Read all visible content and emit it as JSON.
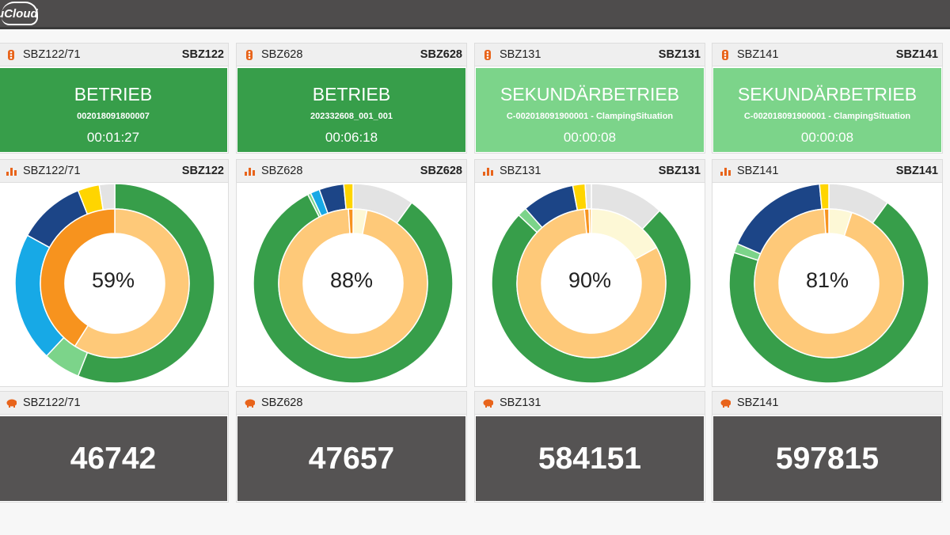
{
  "app": {
    "logo_text": "uCloud"
  },
  "colors": {
    "betrieb": "#379e4a",
    "sekundaer": "#7cd48a",
    "counter_bg": "#555353",
    "accent": "#e8641b"
  },
  "machines": [
    {
      "name": "SBZ122/71",
      "code": "SBZ122",
      "status": "BETRIEB",
      "job": "002018091800007",
      "time": "00:01:27",
      "status_color": "#379e4a",
      "percent": "59%",
      "counter": "46742"
    },
    {
      "name": "SBZ628",
      "code": "SBZ628",
      "status": "BETRIEB",
      "job": "202332608_001_001",
      "time": "00:06:18",
      "status_color": "#379e4a",
      "percent": "88%",
      "counter": "47657"
    },
    {
      "name": "SBZ131",
      "code": "SBZ131",
      "status": "SEKUNDÄRBETRIEB",
      "job": "C-002018091900001 - ClampingSituation",
      "time": "00:00:08",
      "status_color": "#7cd48a",
      "percent": "90%",
      "counter": "584151"
    },
    {
      "name": "SBZ141",
      "code": "SBZ141",
      "status": "SEKUNDÄRBETRIEB",
      "job": "C-002018091900001 - ClampingSituation",
      "time": "00:00:08",
      "status_color": "#7cd48a",
      "percent": "81%",
      "counter": "597815"
    }
  ],
  "icons": {
    "status": "traffic-light-icon",
    "chart": "bar-chart-icon",
    "counter": "piggy-bank-icon"
  },
  "chart_data": [
    {
      "type": "pie",
      "center_label": "59%",
      "outer": [
        {
          "value": 56,
          "color": "#379e4a"
        },
        {
          "value": 6,
          "color": "#7cd48a"
        },
        {
          "value": 21,
          "color": "#17a9e6"
        },
        {
          "value": 11,
          "color": "#1c4587"
        },
        {
          "value": 3.5,
          "color": "#ffd500"
        },
        {
          "value": 2.5,
          "color": "#e3e3e3"
        }
      ],
      "inner": [
        {
          "value": 59,
          "color": "#fec979"
        },
        {
          "value": 41,
          "color": "#f7931e"
        }
      ]
    },
    {
      "type": "pie",
      "center_label": "88%",
      "outer": [
        {
          "value": 10,
          "color": "#e3e3e3"
        },
        {
          "value": 82.5,
          "color": "#379e4a"
        },
        {
          "value": 0.5,
          "color": "#7cd48a"
        },
        {
          "value": 1.5,
          "color": "#17a9e6"
        },
        {
          "value": 4,
          "color": "#1c4587"
        },
        {
          "value": 1.5,
          "color": "#ffd500"
        }
      ],
      "inner": [
        {
          "value": 3,
          "color": "#fdf8d6"
        },
        {
          "value": 96,
          "color": "#fec979"
        },
        {
          "value": 1,
          "color": "#f7931e"
        }
      ]
    },
    {
      "type": "pie",
      "center_label": "90%",
      "outer": [
        {
          "value": 12,
          "color": "#e3e3e3"
        },
        {
          "value": 75,
          "color": "#379e4a"
        },
        {
          "value": 1.5,
          "color": "#7cd48a"
        },
        {
          "value": 8.5,
          "color": "#1c4587"
        },
        {
          "value": 2,
          "color": "#ffd500"
        },
        {
          "value": 1,
          "color": "#e3e3e3"
        }
      ],
      "inner": [
        {
          "value": 17,
          "color": "#fdf8d6"
        },
        {
          "value": 81.5,
          "color": "#fec979"
        },
        {
          "value": 1,
          "color": "#f7931e"
        },
        {
          "value": 0.5,
          "color": "#fec979"
        }
      ]
    },
    {
      "type": "pie",
      "center_label": "81%",
      "outer": [
        {
          "value": 10,
          "color": "#e3e3e3"
        },
        {
          "value": 70,
          "color": "#379e4a"
        },
        {
          "value": 1.5,
          "color": "#7cd48a"
        },
        {
          "value": 17,
          "color": "#1c4587"
        },
        {
          "value": 1.5,
          "color": "#ffd500"
        }
      ],
      "inner": [
        {
          "value": 5,
          "color": "#fdf8d6"
        },
        {
          "value": 94,
          "color": "#fec979"
        },
        {
          "value": 1,
          "color": "#f7931e"
        }
      ]
    }
  ]
}
